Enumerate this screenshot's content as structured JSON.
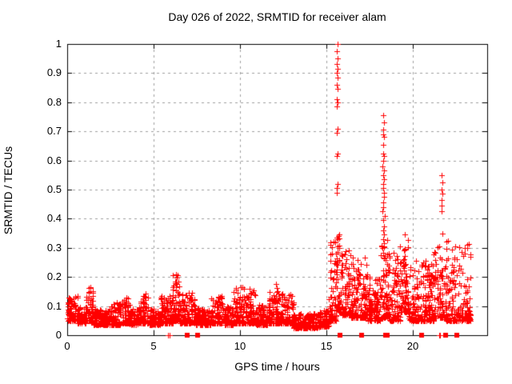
{
  "page": {
    "background": "#ffffff"
  },
  "chart_data": {
    "type": "scatter",
    "title": "Day 026 of 2022, SRMTID for receiver alam",
    "xlabel": "GPS time / hours",
    "ylabel": "SRMTID / TECUs",
    "xlim": [
      0,
      24.3
    ],
    "ylim": [
      0,
      1
    ],
    "xticks": [
      0,
      5,
      10,
      15,
      20
    ],
    "xtick_labels": [
      "0",
      "5",
      "10",
      "15",
      "20"
    ],
    "yticks": [
      0,
      0.1,
      0.2,
      0.3,
      0.4,
      0.5,
      0.6,
      0.7,
      0.8,
      0.9,
      1
    ],
    "ytick_labels": [
      "0",
      "0.1",
      "0.2",
      "0.3",
      "0.4",
      "0.5",
      "0.6",
      "0.7",
      "0.8",
      "0.9",
      "1"
    ],
    "grid": true,
    "legend": "none",
    "colors": {
      "marker": "#ff0000",
      "grid": "#a0a0a0",
      "axis": "#000000",
      "background": "#ffffff"
    },
    "marker": {
      "glyph": "plus",
      "size": 7
    },
    "seed": 1234567,
    "series": [
      {
        "name": "srmtid-band",
        "mode": "bands",
        "comment": "Each band: [x0_hours, x1_hours, n_points, y_min_TECUs, y_max_TECUs, power] - y drawn bottom-heavy as ymin+(ymax-ymin)*u^power",
        "bands": [
          [
            0.0,
            0.6,
            70,
            0.05,
            0.135,
            1.8
          ],
          [
            0.6,
            1.05,
            50,
            0.04,
            0.1,
            2.0
          ],
          [
            1.05,
            1.5,
            55,
            0.05,
            0.165,
            2.2
          ],
          [
            1.5,
            2.3,
            90,
            0.035,
            0.09,
            2.0
          ],
          [
            2.3,
            3.1,
            90,
            0.035,
            0.115,
            2.4
          ],
          [
            3.1,
            3.6,
            55,
            0.04,
            0.13,
            2.4
          ],
          [
            3.6,
            4.1,
            55,
            0.035,
            0.09,
            2.0
          ],
          [
            4.1,
            4.7,
            65,
            0.04,
            0.145,
            2.4
          ],
          [
            4.7,
            5.4,
            75,
            0.035,
            0.095,
            2.0
          ],
          [
            5.4,
            6.1,
            75,
            0.04,
            0.135,
            2.4
          ],
          [
            6.1,
            6.5,
            45,
            0.05,
            0.215,
            2.6
          ],
          [
            6.5,
            7.4,
            95,
            0.04,
            0.15,
            2.6
          ],
          [
            7.4,
            8.3,
            95,
            0.035,
            0.095,
            2.0
          ],
          [
            8.3,
            9.1,
            85,
            0.04,
            0.135,
            2.4
          ],
          [
            9.1,
            9.6,
            55,
            0.035,
            0.1,
            2.0
          ],
          [
            9.6,
            10.9,
            135,
            0.04,
            0.165,
            2.6
          ],
          [
            10.9,
            11.6,
            75,
            0.035,
            0.105,
            2.0
          ],
          [
            11.6,
            12.35,
            80,
            0.04,
            0.155,
            2.4
          ],
          [
            12.35,
            13.1,
            80,
            0.04,
            0.145,
            2.4
          ],
          [
            13.1,
            14.6,
            150,
            0.025,
            0.075,
            1.8
          ],
          [
            14.6,
            15.15,
            60,
            0.03,
            0.09,
            2.0
          ],
          [
            15.15,
            15.55,
            50,
            0.05,
            0.33,
            2.6
          ],
          [
            15.55,
            15.8,
            30,
            0.08,
            0.35,
            2.0
          ],
          [
            15.8,
            16.4,
            65,
            0.07,
            0.3,
            2.4
          ],
          [
            16.4,
            17.4,
            110,
            0.06,
            0.27,
            2.6
          ],
          [
            17.4,
            18.15,
            85,
            0.05,
            0.2,
            2.2
          ],
          [
            18.15,
            18.55,
            50,
            0.06,
            0.33,
            2.0
          ],
          [
            18.55,
            19.25,
            75,
            0.05,
            0.3,
            2.6
          ],
          [
            19.25,
            19.75,
            60,
            0.08,
            0.36,
            2.4
          ],
          [
            19.75,
            21.2,
            160,
            0.05,
            0.26,
            2.4
          ],
          [
            21.2,
            21.85,
            75,
            0.06,
            0.32,
            2.4
          ],
          [
            21.85,
            23.35,
            150,
            0.05,
            0.33,
            2.6
          ]
        ]
      },
      {
        "name": "srmtid-spikes",
        "mode": "points",
        "comment": "Explicit outlier points [hours, TECUs] for the tall vertical features",
        "points": [
          [
            15.63,
            1.0
          ],
          [
            15.61,
            0.975
          ],
          [
            15.65,
            0.95
          ],
          [
            15.62,
            0.93
          ],
          [
            15.64,
            0.915
          ],
          [
            15.6,
            0.9
          ],
          [
            15.66,
            0.885
          ],
          [
            15.62,
            0.86
          ],
          [
            15.63,
            0.845
          ],
          [
            15.61,
            0.81
          ],
          [
            15.65,
            0.8
          ],
          [
            15.6,
            0.785
          ],
          [
            15.63,
            0.71
          ],
          [
            15.62,
            0.695
          ],
          [
            15.66,
            0.625
          ],
          [
            15.61,
            0.615
          ],
          [
            15.64,
            0.52
          ],
          [
            15.62,
            0.505
          ],
          [
            15.6,
            0.49
          ],
          [
            15.65,
            0.305
          ],
          [
            15.63,
            0.285
          ],
          [
            15.62,
            0.265
          ],
          [
            15.64,
            0.25
          ],
          [
            18.28,
            0.755
          ],
          [
            18.33,
            0.73
          ],
          [
            18.3,
            0.705
          ],
          [
            18.26,
            0.69
          ],
          [
            18.31,
            0.68
          ],
          [
            18.29,
            0.655
          ],
          [
            18.27,
            0.625
          ],
          [
            18.34,
            0.615
          ],
          [
            18.3,
            0.6
          ],
          [
            18.25,
            0.58
          ],
          [
            18.32,
            0.565
          ],
          [
            18.28,
            0.55
          ],
          [
            18.35,
            0.535
          ],
          [
            18.29,
            0.52
          ],
          [
            18.26,
            0.505
          ],
          [
            18.31,
            0.49
          ],
          [
            18.33,
            0.475
          ],
          [
            18.27,
            0.455
          ],
          [
            18.3,
            0.44
          ],
          [
            18.24,
            0.425
          ],
          [
            18.36,
            0.41
          ],
          [
            18.29,
            0.395
          ],
          [
            18.32,
            0.375
          ],
          [
            18.26,
            0.36
          ],
          [
            18.34,
            0.345
          ],
          [
            18.28,
            0.33
          ],
          [
            18.31,
            0.315
          ],
          [
            21.66,
            0.55
          ],
          [
            21.69,
            0.525
          ],
          [
            21.67,
            0.5
          ],
          [
            21.7,
            0.485
          ],
          [
            21.65,
            0.465
          ],
          [
            21.68,
            0.445
          ],
          [
            21.66,
            0.425
          ],
          [
            21.71,
            0.35
          ],
          [
            12.1,
            0.175
          ],
          [
            12.13,
            0.162
          ],
          [
            12.11,
            0.148
          ],
          [
            6.3,
            0.21
          ],
          [
            6.33,
            0.198
          ],
          [
            6.31,
            0.185
          ],
          [
            6.35,
            0.175
          ],
          [
            6.29,
            0.166
          ]
        ]
      },
      {
        "name": "baseline-flags-squares",
        "mode": "baseline-squares",
        "comment": "Filled red squares sitting on the y=0 axis line, x in hours",
        "x": [
          6.95,
          7.55,
          15.78,
          17.05,
          18.42,
          18.52,
          20.5,
          21.9,
          22.55
        ]
      },
      {
        "name": "baseline-flags-plus",
        "mode": "baseline-plus",
        "comment": "Plus markers at y=0, x in hours",
        "x": [
          5.85,
          5.92,
          21.5,
          21.58
        ]
      }
    ]
  }
}
